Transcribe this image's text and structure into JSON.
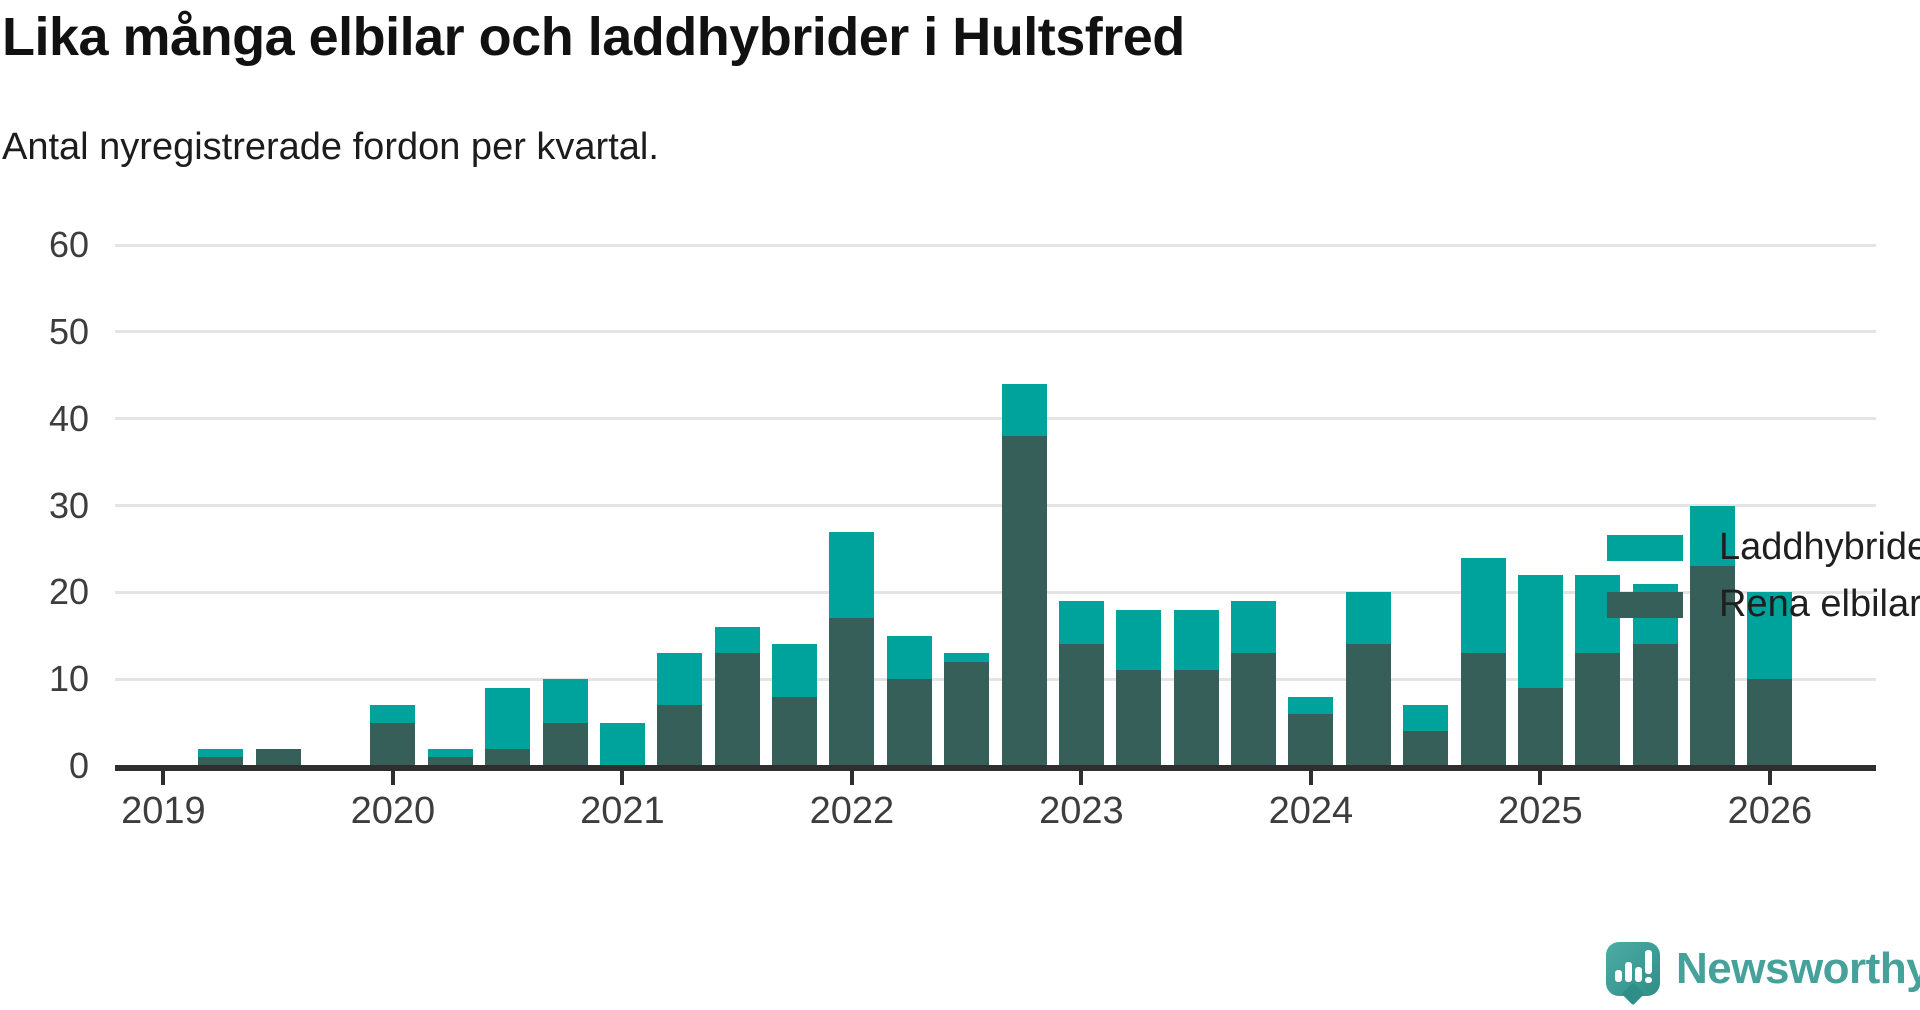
{
  "header": {
    "title": "Lika många elbilar och laddhybrider i Hultsfred",
    "subtitle": "Antal nyregistrerade fordon per kvartal."
  },
  "chart_data": {
    "type": "bar",
    "stacked": true,
    "title": "Lika många elbilar och laddhybrider i Hultsfred",
    "subtitle": "Antal nyregistrerade fordon per kvartal.",
    "quarters": [
      "2019-Q1",
      "2019-Q2",
      "2019-Q3",
      "2019-Q4",
      "2020-Q1",
      "2020-Q2",
      "2020-Q3",
      "2020-Q4",
      "2021-Q1",
      "2021-Q2",
      "2021-Q3",
      "2021-Q4",
      "2022-Q1",
      "2022-Q2",
      "2022-Q3",
      "2022-Q4",
      "2023-Q1",
      "2023-Q2",
      "2023-Q3",
      "2023-Q4",
      "2024-Q1",
      "2024-Q2",
      "2024-Q3",
      "2024-Q4",
      "2025-Q1",
      "2025-Q2",
      "2025-Q3",
      "2025-Q4",
      "2026-Q1"
    ],
    "series": [
      {
        "name": "Laddhybrider",
        "color": "#00A39B",
        "values": [
          0,
          1,
          0,
          0,
          2,
          1,
          7,
          5,
          5,
          6,
          3,
          6,
          10,
          5,
          1,
          6,
          5,
          7,
          7,
          6,
          2,
          6,
          3,
          11,
          13,
          9,
          7,
          7,
          10
        ]
      },
      {
        "name": "Rena elbilar",
        "color": "#375F5A",
        "values": [
          0,
          1,
          2,
          0,
          5,
          1,
          2,
          5,
          0,
          7,
          13,
          8,
          17,
          10,
          12,
          38,
          14,
          11,
          11,
          13,
          6,
          14,
          4,
          13,
          9,
          13,
          14,
          23,
          10
        ]
      }
    ],
    "stack_order_bottom_to_top": [
      "Rena elbilar",
      "Laddhybrider"
    ],
    "x_tick_labels": [
      "2019",
      "2020",
      "2021",
      "2022",
      "2023",
      "2024",
      "2025",
      "2026"
    ],
    "yticks": [
      0,
      10,
      20,
      30,
      40,
      50,
      60
    ],
    "ylim": [
      0,
      60
    ],
    "grid": true,
    "legend_position": "top-right",
    "colors": {
      "grid": "#e4e4e4",
      "axis": "#2e2e2e",
      "laddhybrider": "#00A39B",
      "rena_elbilar": "#375F5A"
    }
  },
  "footer": {
    "brand": "Newsworthy"
  }
}
